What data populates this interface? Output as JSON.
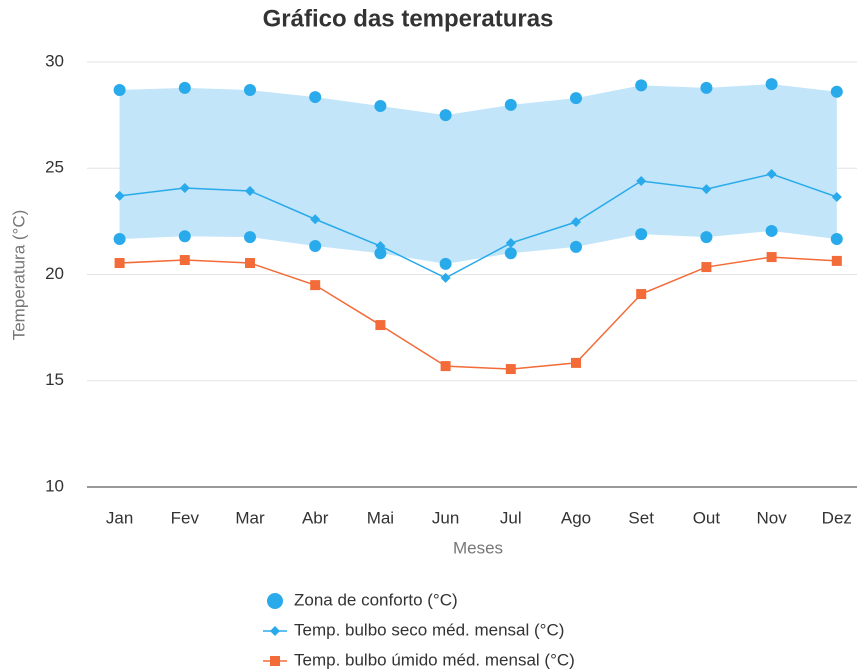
{
  "chart_data": {
    "type": "line",
    "title": "Gráfico das temperaturas",
    "x_label": "Meses",
    "y_label": "Temperatura (°C)",
    "categories": [
      "Jan",
      "Fev",
      "Mar",
      "Abr",
      "Mai",
      "Jun",
      "Jul",
      "Ago",
      "Set",
      "Out",
      "Nov",
      "Dez"
    ],
    "ylim": [
      10,
      30
    ],
    "yticks": [
      10,
      15,
      20,
      25,
      30
    ],
    "grid": true,
    "legend": "bottom",
    "series": [
      {
        "name": "Zona de conforto (°C)",
        "color": "#29aaeb",
        "fill": "#c2e5fa",
        "marker": "circle",
        "high": [
          28.68,
          28.78,
          28.68,
          28.35,
          27.93,
          27.5,
          27.98,
          28.3,
          28.9,
          28.78,
          28.96,
          28.6
        ],
        "low": [
          21.67,
          21.8,
          21.76,
          21.34,
          21.0,
          20.5,
          21.0,
          21.3,
          21.9,
          21.76,
          22.05,
          21.67
        ]
      },
      {
        "name": "Temp. bulbo seco méd. mensal (°C)",
        "color": "#29aaeb",
        "marker": "diamond",
        "values": [
          23.7,
          24.07,
          23.93,
          22.6,
          21.34,
          19.84,
          21.48,
          22.47,
          24.4,
          24.02,
          24.73,
          23.65
        ]
      },
      {
        "name": "Temp. bulbo úmido méd. mensal (°C)",
        "color": "#f26b38",
        "marker": "square",
        "values": [
          20.54,
          20.68,
          20.54,
          19.5,
          17.62,
          15.69,
          15.55,
          15.84,
          19.08,
          20.35,
          20.82,
          20.64
        ]
      }
    ]
  }
}
